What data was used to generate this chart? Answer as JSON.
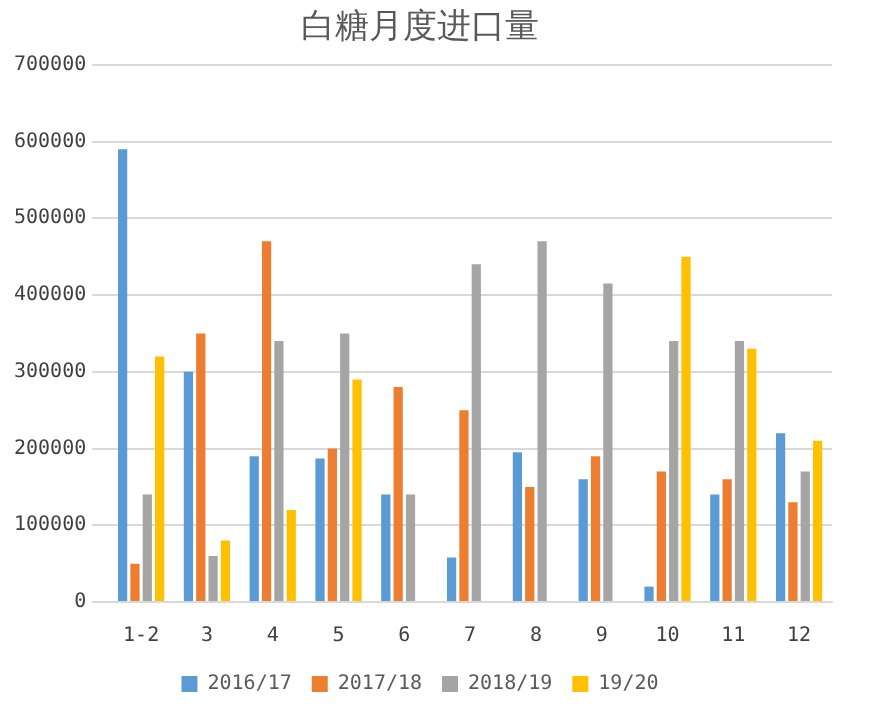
{
  "chart_data": {
    "type": "bar",
    "title": "白糖月度进口量",
    "categories": [
      "1-2",
      "3",
      "4",
      "5",
      "6",
      "7",
      "8",
      "9",
      "10",
      "11",
      "12"
    ],
    "series": [
      {
        "name": "2016/17",
        "color": "#5b9bd5",
        "values": [
          590000,
          300000,
          190000,
          187000,
          140000,
          58000,
          195000,
          160000,
          20000,
          140000,
          220000
        ]
      },
      {
        "name": "2017/18",
        "color": "#ed7d31",
        "values": [
          50000,
          350000,
          470000,
          200000,
          280000,
          250000,
          150000,
          190000,
          170000,
          160000,
          130000
        ]
      },
      {
        "name": "2018/19",
        "color": "#a5a5a5",
        "values": [
          140000,
          60000,
          340000,
          350000,
          140000,
          440000,
          470000,
          415000,
          340000,
          340000,
          170000
        ]
      },
      {
        "name": "19/20",
        "color": "#ffc000",
        "values": [
          320000,
          80000,
          120000,
          290000,
          null,
          null,
          null,
          null,
          450000,
          330000,
          210000
        ]
      }
    ],
    "ylim": [
      0,
      700000
    ],
    "yticks": [
      0,
      100000,
      200000,
      300000,
      400000,
      500000,
      600000,
      700000
    ],
    "grid": "y",
    "legend": "bottom"
  }
}
